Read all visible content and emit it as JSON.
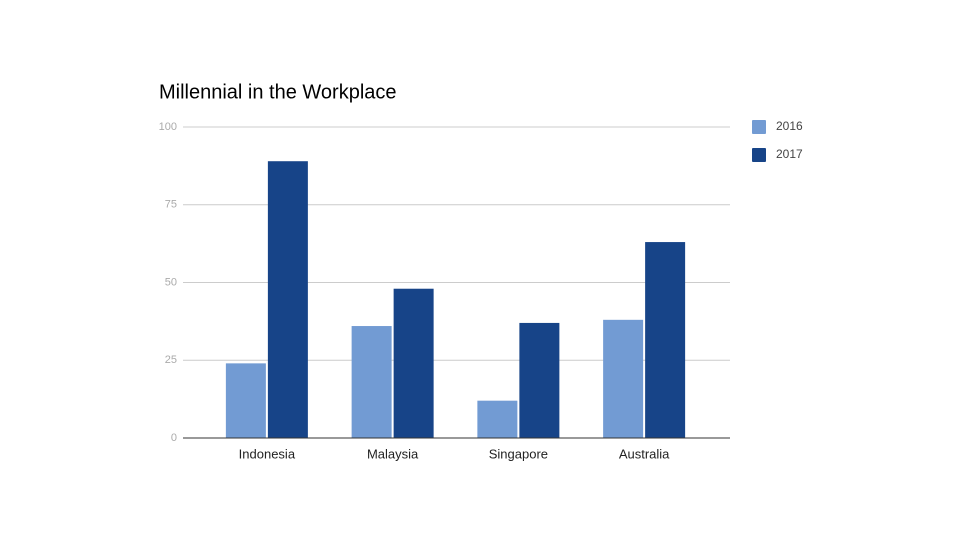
{
  "chart_data": {
    "type": "bar",
    "title": "Millennial in the Workplace",
    "categories": [
      "Indonesia",
      "Malaysia",
      "Singapore",
      "Australia"
    ],
    "series": [
      {
        "name": "2016",
        "color": "#729bd3",
        "values": [
          24,
          36,
          12,
          38
        ]
      },
      {
        "name": "2017",
        "color": "#174488",
        "values": [
          89,
          48,
          37,
          63
        ]
      }
    ],
    "ylim": [
      0,
      100
    ],
    "yticks": [
      0,
      25,
      50,
      75,
      100
    ],
    "grid": true,
    "legend": "right"
  }
}
